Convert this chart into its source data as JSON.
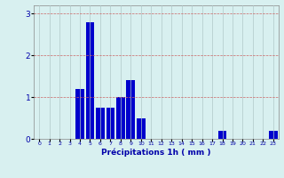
{
  "xlabel": "Précipitations 1h ( mm )",
  "ylabel": "",
  "categories": [
    0,
    1,
    2,
    3,
    4,
    5,
    6,
    7,
    8,
    9,
    10,
    11,
    12,
    13,
    14,
    15,
    16,
    17,
    18,
    19,
    20,
    21,
    22,
    23
  ],
  "values": [
    0,
    0,
    0,
    0,
    1.2,
    2.8,
    0.75,
    0.75,
    1.0,
    1.4,
    0.5,
    0,
    0,
    0,
    0,
    0,
    0,
    0,
    0.2,
    0,
    0,
    0,
    0,
    0.2
  ],
  "bar_color": "#0000cc",
  "background_color": "#d8f0f0",
  "grid_color": "#b0c8c8",
  "ylim": [
    0,
    3.2
  ],
  "yticks": [
    0,
    1,
    2,
    3
  ],
  "xlim": [
    -0.5,
    23.5
  ]
}
